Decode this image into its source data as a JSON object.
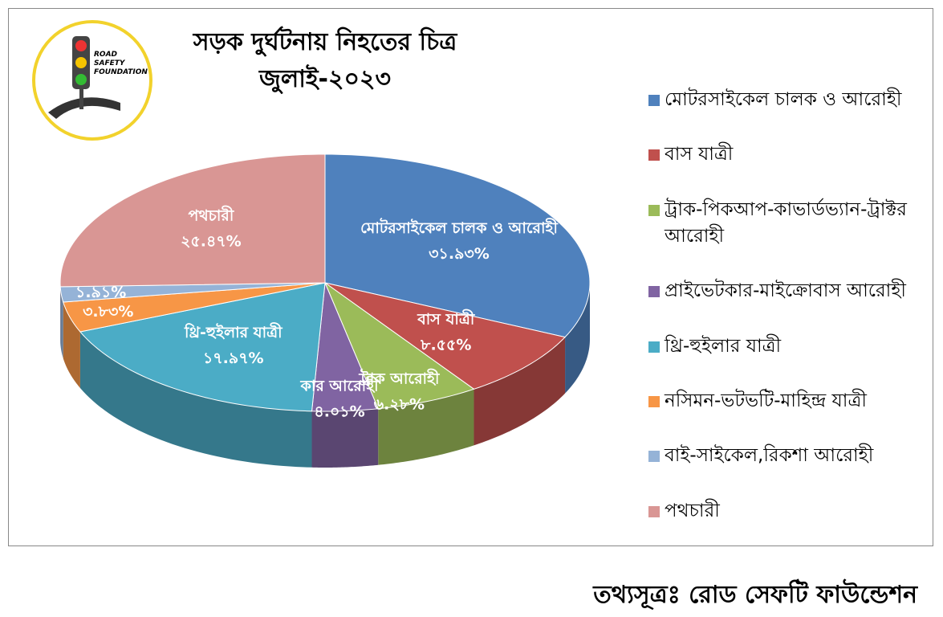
{
  "chart_data": {
    "type": "pie3d",
    "title": "সড়ক দুর্ঘটনায় নিহতের চিত্র",
    "subtitle": "জুলাই-২০২৩",
    "categories": [
      "মোটরসাইকেল চালক ও আরোহী",
      "বাস যাত্রী",
      "ট্রাক-পিকআপ-কাভার্ডভ্যান-ট্রাক্টর আরোহী",
      "প্রাইভেটকার-মাইক্রোবাস আরোহী",
      "থ্রি-হুইলার যাত্রী",
      "নসিমন-ভটভটি-মাহিন্দ্র যাত্রী",
      "বাই-সাইকেল,রিকশা আরোহী",
      "পথচারী"
    ],
    "slice_labels": [
      "মোটরসাইকেল চালক ও আরোহী",
      "বাস যাত্রী",
      "ট্রাক আরোহী",
      "কার আরোহী",
      "থ্রি-হুইলার যাত্রী",
      null,
      null,
      "পথচারী"
    ],
    "values": [
      31.93,
      8.55,
      6.28,
      4.01,
      17.97,
      3.83,
      1.91,
      25.47
    ],
    "value_labels": [
      "৩১.৯৩%",
      "৮.৫৫%",
      "৬.২৮%",
      "৪.০১%",
      "১৭.৯৭%",
      "৩.৮৩%",
      "১.৯১%",
      "২৫.৪৭%"
    ],
    "colors": [
      "#4f81bd",
      "#c0504d",
      "#9bbb59",
      "#8064a2",
      "#4bacc6",
      "#f79646",
      "#95b3d7",
      "#d99694"
    ],
    "legend": "right"
  },
  "logo": {
    "lines": [
      "ROAD",
      "SAFETY",
      "FOUNDATION"
    ]
  },
  "source": "তথ্যসূত্রঃ রোড সেফটি ফাউন্ডেশন"
}
